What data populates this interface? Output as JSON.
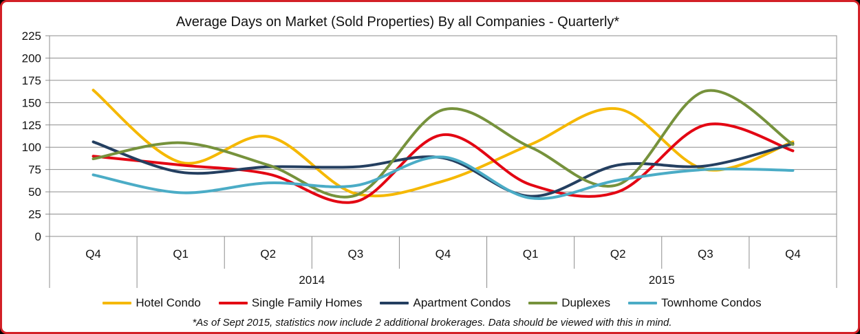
{
  "chart_data": {
    "type": "line",
    "title": "Average Days on Market (Sold Properties) By all Companies - Quarterly*",
    "categories": [
      "Q4",
      "Q1",
      "Q2",
      "Q3",
      "Q4",
      "Q1",
      "Q2",
      "Q3",
      "Q4"
    ],
    "year_groups": [
      {
        "label": "2014",
        "start": 1,
        "end": 4
      },
      {
        "label": "2015",
        "start": 5,
        "end": 8
      }
    ],
    "ylim": [
      0,
      225
    ],
    "yticks": [
      0,
      25,
      50,
      75,
      100,
      125,
      150,
      175,
      200,
      225
    ],
    "grid": true,
    "legend_position": "bottom",
    "series": [
      {
        "name": "Hotel Condo",
        "color": "#f5b800",
        "values": [
          164,
          83,
          112,
          48,
          62,
          103,
          143,
          75,
          106
        ]
      },
      {
        "name": "Single Family Homes",
        "color": "#e30613",
        "values": [
          90,
          80,
          70,
          39,
          114,
          58,
          50,
          125,
          96
        ]
      },
      {
        "name": "Apartment Condos",
        "color": "#243f60",
        "values": [
          106,
          72,
          78,
          78,
          88,
          45,
          80,
          79,
          104
        ]
      },
      {
        "name": "Duplexes",
        "color": "#76923c",
        "values": [
          87,
          105,
          80,
          46,
          142,
          100,
          58,
          163,
          103
        ]
      },
      {
        "name": "Townhome Condos",
        "color": "#4bacc6",
        "values": [
          69,
          49,
          60,
          57,
          89,
          43,
          63,
          75,
          74
        ]
      }
    ],
    "footnote": "*As of Sept 2015, statistics now include 2 additional brokerages. Data should be viewed with this in mind."
  }
}
